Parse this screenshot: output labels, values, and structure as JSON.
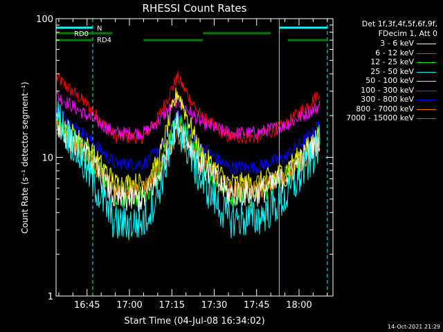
{
  "chart_data": {
    "type": "line",
    "title": "RHESSI Count Rates",
    "xlabel": "Start Time (04-Jul-08 16:34:02)",
    "ylabel": "Count Rate (s⁻¹ detector segment⁻¹)",
    "yscale": "log",
    "ylim": [
      1,
      100
    ],
    "xlim": [
      "16:34:02",
      "18:12:00"
    ],
    "x_tick_labels": [
      "16:45",
      "17:00",
      "17:15",
      "17:30",
      "17:45",
      "18:00"
    ],
    "y_tick_labels": [
      "1",
      "10",
      "100"
    ],
    "legend_title": [
      "Det 1f,3f,4f,5f,6f,9f,",
      "FDecim 1, Att 0"
    ],
    "legend_placement": "right",
    "series": [
      {
        "name": "3 - 6 keV",
        "color": "#ffffff",
        "x": [
          "16:34",
          "16:45",
          "16:55",
          "17:05",
          "17:10",
          "17:17",
          "17:25",
          "17:35",
          "17:45",
          "17:55",
          "18:05",
          "18:10"
        ],
        "values": [
          17,
          10,
          5.0,
          5.0,
          7,
          18,
          9,
          5.5,
          5.5,
          7,
          12,
          16
        ]
      },
      {
        "name": "6 - 12 keV",
        "color": "#ff00ff",
        "x": [
          "16:34",
          "16:45",
          "16:55",
          "17:05",
          "17:10",
          "17:17",
          "17:25",
          "17:35",
          "17:45",
          "17:55",
          "18:05",
          "18:10"
        ],
        "values": [
          28,
          20,
          15,
          15,
          18,
          26,
          18,
          15,
          15,
          17,
          22,
          26
        ]
      },
      {
        "name": "12 - 25 keV",
        "color": "#00ff00",
        "x": [
          "16:34",
          "16:45",
          "16:55",
          "17:05",
          "17:10",
          "17:17",
          "17:25",
          "17:35",
          "17:45",
          "17:55",
          "18:05",
          "18:10"
        ],
        "values": [
          18,
          11,
          5.2,
          5.2,
          7.5,
          19,
          10,
          5.3,
          5.3,
          7,
          12,
          17
        ]
      },
      {
        "name": "25 - 50 keV",
        "color": "#00ffff",
        "x": [
          "16:34",
          "16:45",
          "16:55",
          "17:05",
          "17:10",
          "17:17",
          "17:25",
          "17:35",
          "17:45",
          "17:55",
          "18:05",
          "18:10"
        ],
        "values": [
          21,
          8,
          3.3,
          3.4,
          5.5,
          17,
          7,
          3.6,
          3.6,
          5,
          10,
          17
        ]
      },
      {
        "name": "50 - 100 keV",
        "color": "#ffff00",
        "x": [
          "16:34",
          "16:45",
          "16:55",
          "17:05",
          "17:10",
          "17:17",
          "17:25",
          "17:35",
          "17:45",
          "17:55",
          "18:05",
          "18:10"
        ],
        "values": [
          19,
          12,
          6.5,
          6.5,
          9,
          30,
          11,
          6.5,
          6.5,
          8,
          13,
          18
        ]
      },
      {
        "name": "100 - 300 keV",
        "color": "#ff0000",
        "x": [
          "16:34",
          "16:45",
          "16:55",
          "17:05",
          "17:10",
          "17:17",
          "17:25",
          "17:35",
          "17:45",
          "17:55",
          "18:05",
          "18:10"
        ],
        "values": [
          38,
          24,
          14,
          14,
          19,
          38,
          20,
          14,
          14,
          17,
          26,
          35
        ]
      },
      {
        "name": "300 - 800 keV",
        "color": "#0000ff",
        "x": [
          "16:34",
          "16:45",
          "16:55",
          "17:05",
          "17:10",
          "17:17",
          "17:25",
          "17:35",
          "17:45",
          "17:55",
          "18:05",
          "18:10"
        ],
        "values": [
          22,
          14,
          9,
          9,
          11,
          20,
          12,
          8.5,
          8.5,
          10,
          15,
          21
        ]
      },
      {
        "name": "800 - 7000 keV",
        "color": "#ff8000",
        "x": [
          "16:34",
          "16:45",
          "16:55",
          "17:05",
          "17:10",
          "17:17",
          "17:25",
          "17:35",
          "17:45",
          "17:55",
          "18:05",
          "18:10"
        ],
        "values": [
          16,
          10,
          5.8,
          5.8,
          7.5,
          15,
          9,
          5.8,
          5.8,
          7,
          11,
          15
        ]
      },
      {
        "name": "7000 - 15000 keV",
        "color": "#808000",
        "x": [
          "16:34",
          "16:45",
          "16:55",
          "17:05",
          "17:10",
          "17:17",
          "17:25",
          "17:35",
          "17:45",
          "17:55",
          "18:05",
          "18:10"
        ],
        "values": [
          17,
          10.5,
          6,
          6,
          8,
          17,
          9.5,
          6,
          6,
          7.5,
          12,
          17
        ]
      }
    ],
    "annotations": {
      "night_label": "N",
      "saa_labels": [
        "RD0",
        "RD4"
      ],
      "night_color": "#00ffff",
      "saa_color": "#008000",
      "night_intervals": [
        [
          "16:34",
          "16:47"
        ],
        [
          "17:53",
          "18:10"
        ]
      ],
      "rd0_intervals": [
        [
          "16:34",
          "16:54"
        ],
        [
          "17:26",
          "17:50"
        ]
      ],
      "rd4_intervals": [
        [
          "16:34",
          "16:47"
        ],
        [
          "17:05",
          "17:26"
        ],
        [
          "17:56",
          "18:10"
        ]
      ],
      "vertical_lines": [
        {
          "x": "16:47",
          "style": "dashed"
        },
        {
          "x": "17:53",
          "style": "solid"
        },
        {
          "x": "18:10",
          "style": "dashed"
        }
      ]
    },
    "grid": false
  },
  "timestamp": "14-Oct-2021 21:29"
}
